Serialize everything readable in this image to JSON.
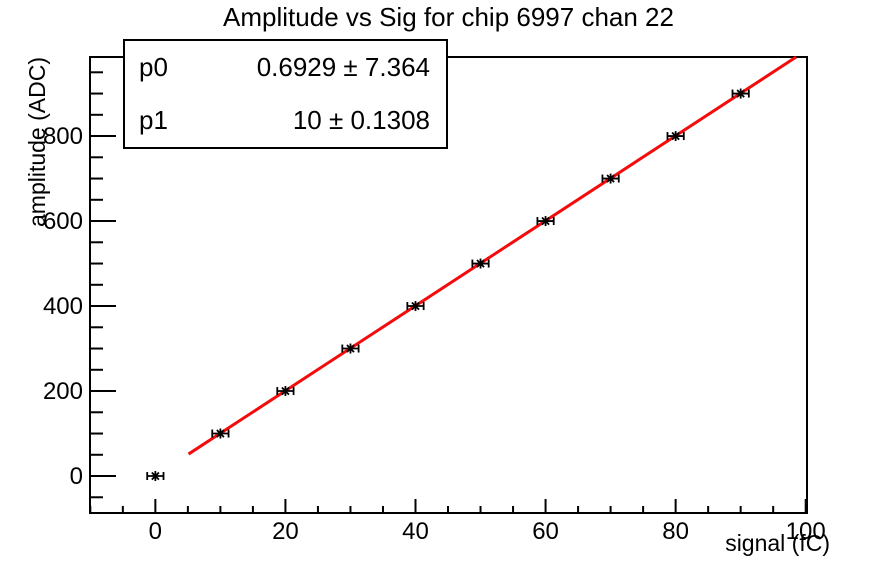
{
  "title": "Amplitude vs Sig for chip 6997 chan 22",
  "stats_box": {
    "rows": [
      {
        "name": "p0",
        "value": "0.6929 ± 7.364"
      },
      {
        "name": "p1",
        "value": "10 ± 0.1308"
      }
    ]
  },
  "chart_data": {
    "type": "scatter",
    "title": "Amplitude vs Sig for chip 6997 chan 22",
    "xlabel": "signal (fC)",
    "ylabel": "amplitude (ADC)",
    "x": [
      0,
      10,
      20,
      30,
      40,
      50,
      60,
      70,
      80,
      90
    ],
    "y": [
      0,
      100,
      200,
      300,
      400,
      500,
      600,
      700,
      800,
      900
    ],
    "xerr": 1.1,
    "xlim": [
      -10.05,
      100.2
    ],
    "ylim": [
      -87,
      986
    ],
    "x_major_ticks": [
      0,
      20,
      40,
      60,
      80,
      100
    ],
    "x_minor_step": 5,
    "y_major_ticks": [
      0,
      200,
      400,
      600,
      800
    ],
    "y_minor_step": 50,
    "grid": false,
    "legend": "none",
    "marker": "asterisk-with-x-error-bars",
    "fit": {
      "p0": 0.6929,
      "p1": 10,
      "x_start": 5.1,
      "x_end": 98.6
    },
    "colors": {
      "fit_line": "#f40b0b",
      "axis": "#000000",
      "marker": "#000000",
      "background": "#ffffff"
    }
  }
}
